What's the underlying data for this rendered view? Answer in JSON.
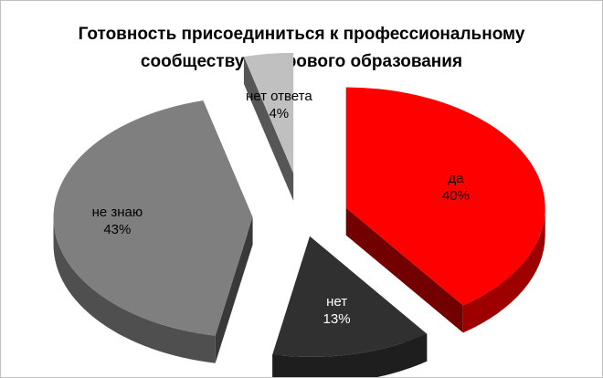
{
  "chart_data": {
    "type": "pie",
    "style": "3d-exploded",
    "title": "Готовность присоединиться к профессиональному сообществу цифрового образования",
    "title_lines": [
      "Готовность присоединиться к профессиональному",
      "сообществу цифрового образования"
    ],
    "slices": [
      {
        "label": "да",
        "value": 40,
        "value_label": "40%",
        "color": "#ff0000",
        "label_color": "#000000"
      },
      {
        "label": "нет",
        "value": 13,
        "value_label": "13%",
        "color": "#303030",
        "label_color": "#ffffff"
      },
      {
        "label": "не знаю",
        "value": 43,
        "value_label": "43%",
        "color": "#7f7f7f",
        "label_color": "#000000"
      },
      {
        "label": "нет ответа",
        "value": 4,
        "value_label": "4%",
        "color": "#c0c0c0",
        "label_color": "#000000"
      }
    ],
    "legend": "none"
  }
}
